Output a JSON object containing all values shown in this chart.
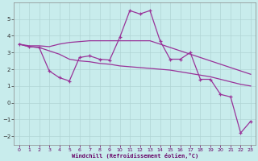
{
  "xlabel": "Windchill (Refroidissement éolien,°C)",
  "background_color": "#c8ecec",
  "line_color": "#993399",
  "grid_color": "#aacccc",
  "xlim": [
    -0.5,
    23.5
  ],
  "ylim": [
    -2.5,
    6.0
  ],
  "yticks": [
    -2,
    -1,
    0,
    1,
    2,
    3,
    4,
    5
  ],
  "xticks": [
    0,
    1,
    2,
    3,
    4,
    5,
    6,
    7,
    8,
    9,
    10,
    11,
    12,
    13,
    14,
    15,
    16,
    17,
    18,
    19,
    20,
    21,
    22,
    23
  ],
  "line1_x": [
    0,
    1,
    2,
    3,
    4,
    5,
    6,
    7,
    8,
    9,
    10,
    11,
    12,
    13,
    14,
    15,
    16,
    17,
    18,
    19,
    20,
    21,
    22,
    23
  ],
  "line1_y": [
    3.5,
    3.4,
    3.4,
    3.35,
    3.5,
    3.6,
    3.65,
    3.7,
    3.7,
    3.7,
    3.7,
    3.7,
    3.7,
    3.7,
    3.5,
    3.3,
    3.1,
    2.9,
    2.7,
    2.5,
    2.3,
    2.1,
    1.9,
    1.7
  ],
  "line2_x": [
    0,
    1,
    2,
    3,
    4,
    5,
    6,
    7,
    8,
    9,
    10,
    11,
    12,
    13,
    14,
    15,
    16,
    17,
    18,
    19,
    20,
    21,
    22,
    23
  ],
  "line2_y": [
    3.5,
    3.35,
    3.3,
    3.1,
    2.9,
    2.6,
    2.5,
    2.45,
    2.35,
    2.3,
    2.2,
    2.15,
    2.1,
    2.05,
    2.0,
    1.95,
    1.85,
    1.75,
    1.65,
    1.55,
    1.4,
    1.25,
    1.1,
    1.0
  ],
  "line3_x": [
    0,
    1,
    2,
    3,
    4,
    5,
    6,
    7,
    8,
    9,
    10,
    11,
    12,
    13,
    14,
    15,
    16,
    17,
    18,
    19,
    20,
    21,
    22,
    23
  ],
  "line3_y": [
    3.5,
    3.35,
    3.3,
    1.9,
    1.5,
    1.3,
    2.7,
    2.8,
    2.6,
    2.55,
    3.9,
    5.5,
    5.3,
    5.5,
    3.7,
    2.6,
    2.6,
    3.0,
    1.4,
    1.4,
    0.5,
    0.35,
    -1.8,
    -1.1
  ]
}
